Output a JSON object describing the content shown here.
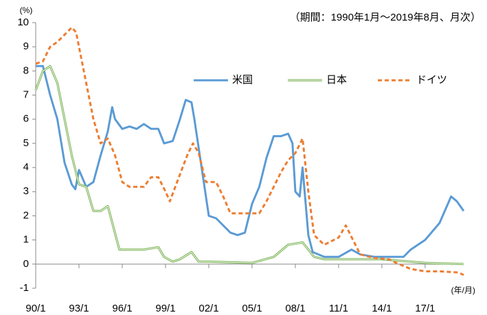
{
  "chart_data": {
    "type": "line",
    "subtitle": "（期間：1990年1月～2019年8月、月次）",
    "y_unit": "(%)",
    "x_unit": "(年/月)",
    "xlim": [
      1990,
      2019.67
    ],
    "xticks": [
      {
        "value": 1990,
        "label": "90/1"
      },
      {
        "value": 1993,
        "label": "93/1"
      },
      {
        "value": 1996,
        "label": "96/1"
      },
      {
        "value": 1999,
        "label": "99/1"
      },
      {
        "value": 2002,
        "label": "02/1"
      },
      {
        "value": 2005,
        "label": "05/1"
      },
      {
        "value": 2008,
        "label": "08/1"
      },
      {
        "value": 2011,
        "label": "11/1"
      },
      {
        "value": 2014,
        "label": "14/1"
      },
      {
        "value": 2017,
        "label": "17/1"
      }
    ],
    "ylim": [
      -1,
      10
    ],
    "yticks": [
      -1,
      0,
      1,
      2,
      3,
      4,
      5,
      6,
      7,
      8,
      9,
      10
    ],
    "legend": "upper right",
    "series": [
      {
        "name": "米国",
        "color": "#5b9bd5",
        "style": "solid",
        "x": [
          1990,
          1990.5,
          1991,
          1991.5,
          1992,
          1992.5,
          1992.75,
          1993,
          1993.5,
          1994,
          1994.5,
          1995,
          1995.3,
          1995.5,
          1996,
          1996.5,
          1997,
          1997.5,
          1998,
          1998.5,
          1998.9,
          1999.5,
          2000,
          2000.4,
          2000.8,
          2001,
          2001.5,
          2002,
          2002.5,
          2003,
          2003.5,
          2004,
          2004.5,
          2005,
          2005.5,
          2006,
          2006.5,
          2007,
          2007.5,
          2007.8,
          2008,
          2008.3,
          2008.5,
          2008.9,
          2009.2,
          2010,
          2011,
          2011.9,
          2012.5,
          2013.5,
          2014.5,
          2015.5,
          2016,
          2017,
          2018,
          2018.8,
          2019.2,
          2019.67
        ],
        "values": [
          8.2,
          8.2,
          7.0,
          6.0,
          4.2,
          3.3,
          3.1,
          3.9,
          3.2,
          3.4,
          4.5,
          5.5,
          6.5,
          6.0,
          5.6,
          5.7,
          5.6,
          5.8,
          5.6,
          5.6,
          5.0,
          5.1,
          6.0,
          6.8,
          6.7,
          6.0,
          4.0,
          2.0,
          1.9,
          1.6,
          1.3,
          1.2,
          1.3,
          2.5,
          3.2,
          4.4,
          5.3,
          5.3,
          5.4,
          5.0,
          3.0,
          2.8,
          4.0,
          1.2,
          0.5,
          0.3,
          0.3,
          0.6,
          0.4,
          0.3,
          0.3,
          0.3,
          0.6,
          1.0,
          1.7,
          2.8,
          2.6,
          2.2
        ]
      },
      {
        "name": "日本",
        "color": "#70ad47",
        "style": "double",
        "x": [
          1990,
          1990.5,
          1991,
          1991.5,
          1992,
          1992.5,
          1993,
          1993.5,
          1994,
          1994.5,
          1995,
          1995.4,
          1995.8,
          1996.5,
          1997.5,
          1998.5,
          1998.9,
          1999.5,
          2000,
          2000.8,
          2001.3,
          2002,
          2005,
          2006.5,
          2007.5,
          2008.5,
          2008.9,
          2009.3,
          2010,
          2012,
          2014,
          2016,
          2017,
          2019.67
        ],
        "values": [
          7.2,
          8.0,
          8.2,
          7.5,
          6.0,
          4.5,
          3.3,
          3.2,
          2.2,
          2.2,
          2.4,
          1.5,
          0.6,
          0.6,
          0.6,
          0.7,
          0.3,
          0.1,
          0.2,
          0.5,
          0.1,
          0.1,
          0.05,
          0.3,
          0.8,
          0.9,
          0.6,
          0.3,
          0.2,
          0.2,
          0.2,
          0.1,
          0.05,
          0.0
        ]
      },
      {
        "name": "ドイツ",
        "color": "#ed7d31",
        "style": "dashed",
        "x": [
          1990,
          1990.5,
          1991,
          1991.5,
          1992,
          1992.5,
          1992.8,
          1993,
          1993.5,
          1994,
          1994.5,
          1995,
          1995.5,
          1996,
          1996.5,
          1997.5,
          1998,
          1998.5,
          1999,
          1999.3,
          1999.8,
          2000.5,
          2000.9,
          2001.3,
          2001.8,
          2002.5,
          2003,
          2003.5,
          2004.5,
          2005.5,
          2006,
          2006.5,
          2007,
          2007.5,
          2008,
          2008.5,
          2008.9,
          2009.3,
          2010,
          2011,
          2011.5,
          2012,
          2012.5,
          2013.5,
          2014.5,
          2015,
          2016,
          2017,
          2018,
          2019.3,
          2019.67
        ],
        "values": [
          8.3,
          8.4,
          9.0,
          9.2,
          9.5,
          9.8,
          9.6,
          9.0,
          7.5,
          6.0,
          5.0,
          5.2,
          4.5,
          3.4,
          3.2,
          3.2,
          3.6,
          3.6,
          3.0,
          2.6,
          3.4,
          4.5,
          5.0,
          4.6,
          3.4,
          3.4,
          2.8,
          2.1,
          2.1,
          2.1,
          2.6,
          3.2,
          3.8,
          4.3,
          4.6,
          5.2,
          3.0,
          1.2,
          0.8,
          1.1,
          1.6,
          1.0,
          0.4,
          0.25,
          0.2,
          0.05,
          -0.2,
          -0.3,
          -0.3,
          -0.35,
          -0.45
        ]
      }
    ]
  }
}
